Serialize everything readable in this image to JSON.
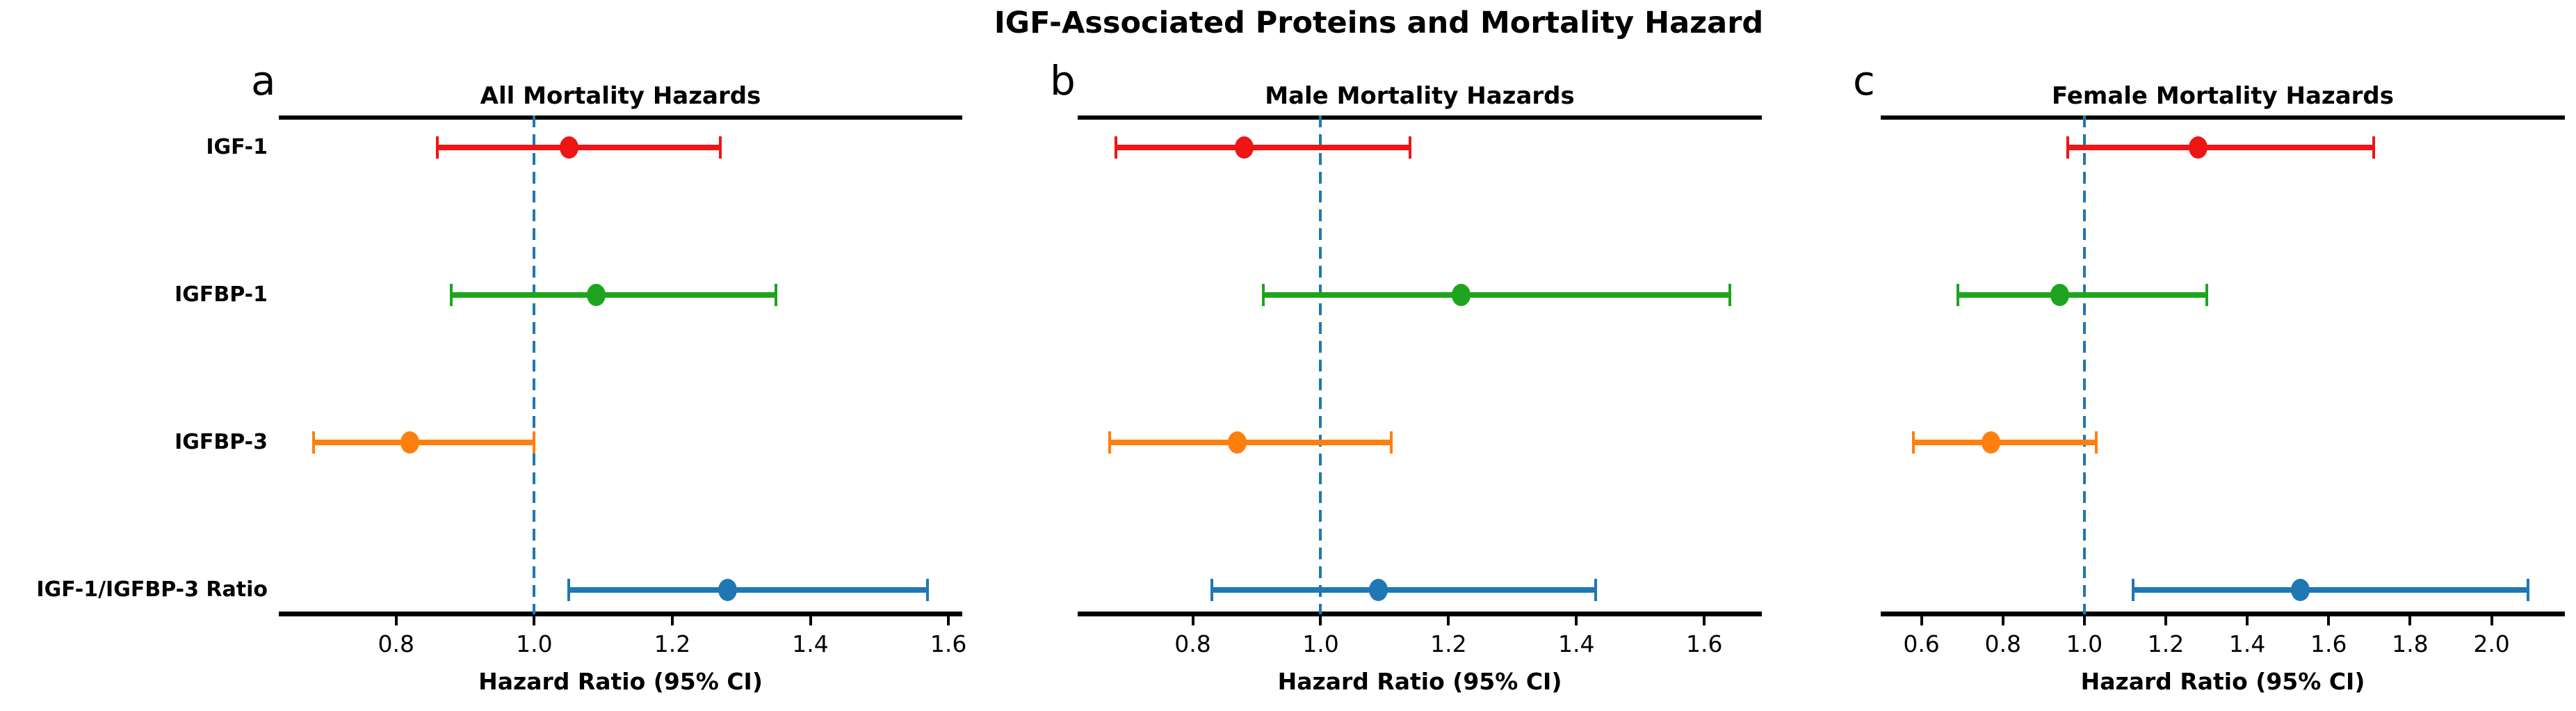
{
  "figure": {
    "title": "IGF-Associated Proteins and Mortality Hazard",
    "background_color": "#ffffff",
    "reference_line_color": "#1f77b4",
    "spine_color": "#000000"
  },
  "chart_data": {
    "type": "scatter",
    "subtype": "forest-plot-errorbar",
    "orientation": "horizontal",
    "grid": false,
    "legend": "none",
    "xlabel": "Hazard Ratio (95% CI)",
    "reference_line_x": 1.0,
    "categories": [
      "IGF-1",
      "IGFBP-1",
      "IGFBP-3",
      "IGF-1/IGFBP-3 Ratio"
    ],
    "category_colors": {
      "IGF-1": "#ee1515",
      "IGFBP-1": "#1ea41e",
      "IGFBP-3": "#ff7f0e",
      "IGF-1/IGFBP-3 Ratio": "#1f77b4"
    },
    "panels": [
      {
        "letter": "a",
        "title": "All Mortality Hazards",
        "xlim": [
          0.63,
          1.62
        ],
        "xticks": [
          "0.8",
          "1.0",
          "1.2",
          "1.4",
          "1.6"
        ],
        "rows": [
          {
            "category": "IGF-1",
            "hr": 1.05,
            "ci_low": 0.86,
            "ci_high": 1.27,
            "color": "#ee1515"
          },
          {
            "category": "IGFBP-1",
            "hr": 1.09,
            "ci_low": 0.88,
            "ci_high": 1.35,
            "color": "#1ea41e"
          },
          {
            "category": "IGFBP-3",
            "hr": 0.82,
            "ci_low": 0.68,
            "ci_high": 1.0,
            "color": "#ff7f0e"
          },
          {
            "category": "IGF-1/IGFBP-3 Ratio",
            "hr": 1.28,
            "ci_low": 1.05,
            "ci_high": 1.57,
            "color": "#1f77b4"
          }
        ]
      },
      {
        "letter": "b",
        "title": "Male Mortality Hazards",
        "xlim": [
          0.62,
          1.69
        ],
        "xticks": [
          "0.8",
          "1.0",
          "1.2",
          "1.4",
          "1.6"
        ],
        "rows": [
          {
            "category": "IGF-1",
            "hr": 0.88,
            "ci_low": 0.68,
            "ci_high": 1.14,
            "color": "#ee1515"
          },
          {
            "category": "IGFBP-1",
            "hr": 1.22,
            "ci_low": 0.91,
            "ci_high": 1.64,
            "color": "#1ea41e"
          },
          {
            "category": "IGFBP-3",
            "hr": 0.87,
            "ci_low": 0.67,
            "ci_high": 1.11,
            "color": "#ff7f0e"
          },
          {
            "category": "IGF-1/IGFBP-3 Ratio",
            "hr": 1.09,
            "ci_low": 0.83,
            "ci_high": 1.43,
            "color": "#1f77b4"
          }
        ]
      },
      {
        "letter": "c",
        "title": "Female Mortality Hazards",
        "xlim": [
          0.5,
          2.18
        ],
        "xticks": [
          "0.6",
          "0.8",
          "1.0",
          "1.2",
          "1.4",
          "1.6",
          "1.8",
          "2.0"
        ],
        "rows": [
          {
            "category": "IGF-1",
            "hr": 1.28,
            "ci_low": 0.96,
            "ci_high": 1.71,
            "color": "#ee1515"
          },
          {
            "category": "IGFBP-1",
            "hr": 0.94,
            "ci_low": 0.69,
            "ci_high": 1.3,
            "color": "#1ea41e"
          },
          {
            "category": "IGFBP-3",
            "hr": 0.77,
            "ci_low": 0.58,
            "ci_high": 1.03,
            "color": "#ff7f0e"
          },
          {
            "category": "IGF-1/IGFBP-3 Ratio",
            "hr": 1.53,
            "ci_low": 1.12,
            "ci_high": 2.09,
            "color": "#1f77b4"
          }
        ]
      }
    ]
  }
}
